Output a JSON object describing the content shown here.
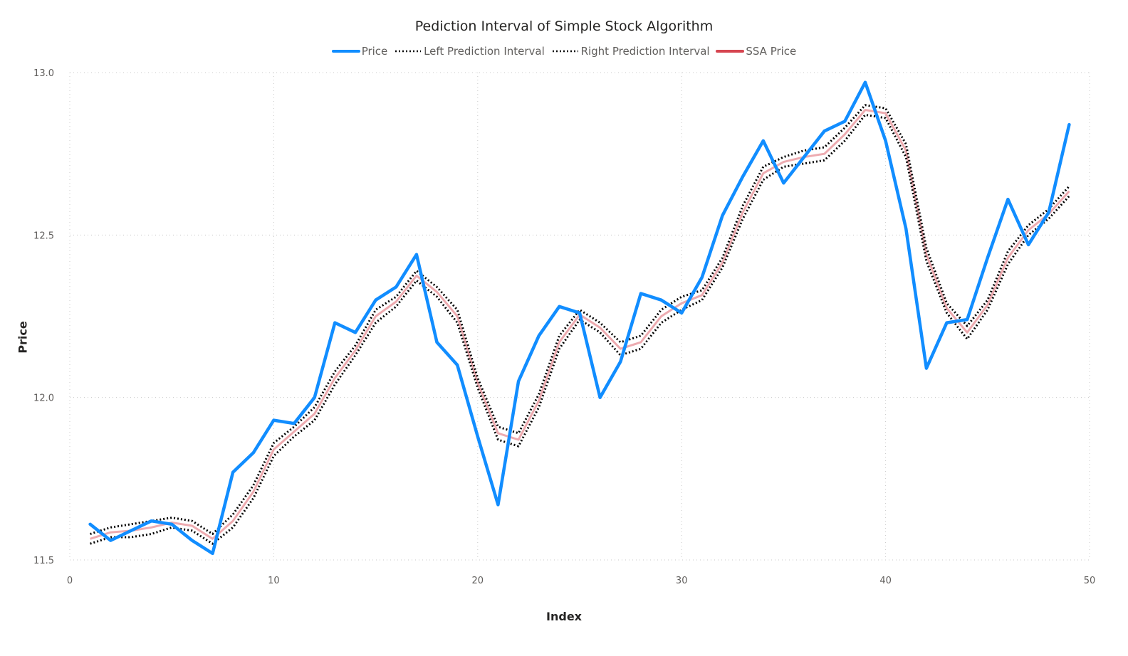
{
  "chart_data": {
    "type": "line",
    "title": "Pediction Interval of Simple Stock Algorithm",
    "xlabel": "Index",
    "ylabel": "Price",
    "xlim": [
      0,
      50
    ],
    "ylim": [
      11.5,
      13.0
    ],
    "xticks": [
      0,
      10,
      20,
      30,
      40,
      50
    ],
    "xtick_labels": [
      "0",
      "10",
      "20",
      "30",
      "40",
      "50"
    ],
    "yticks": [
      11.5,
      12.0,
      12.5,
      13.0
    ],
    "ytick_labels": [
      "11.5",
      "12.0",
      "12.5",
      "13.0"
    ],
    "grid": true,
    "legend_position": "top-center",
    "x": [
      1,
      2,
      3,
      4,
      5,
      6,
      7,
      8,
      9,
      10,
      11,
      12,
      13,
      14,
      15,
      16,
      17,
      18,
      19,
      20,
      21,
      22,
      23,
      24,
      25,
      26,
      27,
      28,
      29,
      30,
      31,
      32,
      33,
      34,
      35,
      36,
      37,
      38,
      39,
      40,
      41,
      42,
      43,
      44,
      45,
      46,
      47,
      48,
      49
    ],
    "series": [
      {
        "name": "Price",
        "color": "#118DFF",
        "style": "solid",
        "values": [
          11.61,
          11.56,
          11.59,
          11.62,
          11.61,
          11.56,
          11.52,
          11.77,
          11.83,
          11.93,
          11.92,
          12.0,
          12.23,
          12.2,
          12.3,
          12.34,
          12.44,
          12.17,
          12.1,
          11.88,
          11.67,
          12.05,
          12.19,
          12.28,
          12.26,
          12.0,
          12.11,
          12.32,
          12.3,
          12.26,
          12.37,
          12.56,
          12.68,
          12.79,
          12.66,
          12.74,
          12.82,
          12.85,
          12.97,
          12.79,
          12.52,
          12.09,
          12.23,
          12.24,
          12.43,
          12.61,
          12.47,
          12.57,
          12.84
        ]
      },
      {
        "name": "Left Prediction Interval",
        "color": "#000000",
        "style": "dotted",
        "values": [
          11.55,
          11.57,
          11.57,
          11.58,
          11.6,
          11.59,
          11.55,
          11.6,
          11.69,
          11.82,
          11.88,
          11.93,
          12.04,
          12.13,
          12.23,
          12.28,
          12.36,
          12.31,
          12.23,
          12.03,
          11.87,
          11.85,
          11.97,
          12.15,
          12.24,
          12.2,
          12.13,
          12.15,
          12.23,
          12.27,
          12.3,
          12.4,
          12.55,
          12.67,
          12.71,
          12.72,
          12.73,
          12.79,
          12.87,
          12.86,
          12.74,
          12.42,
          12.26,
          12.18,
          12.27,
          12.41,
          12.5,
          12.55,
          12.62
        ]
      },
      {
        "name": "Right Prediction Interval",
        "color": "#000000",
        "style": "dotted",
        "values": [
          11.58,
          11.6,
          11.61,
          11.62,
          11.63,
          11.62,
          11.58,
          11.64,
          11.73,
          11.86,
          11.91,
          11.97,
          12.08,
          12.16,
          12.27,
          12.31,
          12.39,
          12.34,
          12.27,
          12.06,
          11.91,
          11.89,
          12.01,
          12.19,
          12.27,
          12.23,
          12.17,
          12.19,
          12.27,
          12.31,
          12.33,
          12.43,
          12.59,
          12.71,
          12.74,
          12.76,
          12.77,
          12.83,
          12.9,
          12.89,
          12.78,
          12.46,
          12.29,
          12.22,
          12.3,
          12.45,
          12.53,
          12.58,
          12.65
        ]
      },
      {
        "name": "SSA Price",
        "color": "#D64550",
        "style": "solid",
        "values": [
          11.565,
          11.585,
          11.59,
          11.6,
          11.615,
          11.605,
          11.565,
          11.62,
          11.71,
          11.84,
          11.895,
          11.95,
          12.06,
          12.145,
          12.25,
          12.295,
          12.375,
          12.325,
          12.25,
          12.045,
          11.89,
          11.87,
          11.99,
          12.17,
          12.255,
          12.215,
          12.15,
          12.17,
          12.25,
          12.29,
          12.315,
          12.415,
          12.57,
          12.69,
          12.725,
          12.74,
          12.75,
          12.81,
          12.885,
          12.875,
          12.76,
          12.44,
          12.275,
          12.2,
          12.285,
          12.43,
          12.515,
          12.565,
          12.635
        ]
      }
    ]
  }
}
